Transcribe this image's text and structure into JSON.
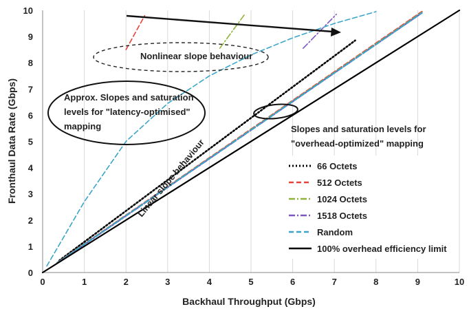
{
  "chart_data": {
    "type": "line",
    "xlabel": "Backhaul Throughput (Gbps)",
    "ylabel": "Fronthaul Data Rate (Gbps)",
    "xlim": [
      0,
      10
    ],
    "ylim": [
      0,
      10
    ],
    "x_ticks": [
      "0",
      "1",
      "2",
      "3",
      "4",
      "5",
      "6",
      "7",
      "8",
      "9",
      "10"
    ],
    "y_ticks": [
      "0",
      "1",
      "2",
      "3",
      "4",
      "5",
      "6",
      "7",
      "8",
      "9",
      "10"
    ],
    "grid": "vertical",
    "legend_position": "bottom-right",
    "series": [
      {
        "name": "66 Octets",
        "color": "#000000",
        "style": "dotted",
        "x": [
          0.4,
          7.5
        ],
        "y": [
          0.46,
          8.85
        ]
      },
      {
        "name": "512 Octets",
        "color": "#e8423a",
        "style": "dashed",
        "x": [
          0.35,
          9.1
        ],
        "y": [
          0.38,
          9.95
        ]
      },
      {
        "name": "1024 Octets",
        "color": "#8fb339",
        "style": "dashdot",
        "x": [
          0.35,
          9.1
        ],
        "y": [
          0.37,
          9.92
        ]
      },
      {
        "name": "1518 Octets",
        "color": "#7e57c2",
        "style": "dashdot",
        "x": [
          0.35,
          9.1
        ],
        "y": [
          0.36,
          9.9
        ]
      },
      {
        "name": "Random",
        "color": "#3aa5c9",
        "style": "dashed",
        "x": [
          0.35,
          9.1
        ],
        "y": [
          0.37,
          9.9
        ]
      },
      {
        "name": "100% overhead efficiency limit",
        "color": "#000000",
        "style": "solid",
        "x": [
          0,
          10
        ],
        "y": [
          0,
          10
        ]
      }
    ],
    "latency_segments": [
      {
        "color": "#e8423a",
        "style": "dashed",
        "x": [
          2.0,
          2.45
        ],
        "y": [
          8.5,
          9.8
        ]
      },
      {
        "color": "#8fb339",
        "style": "dashdot",
        "x": [
          4.25,
          4.85
        ],
        "y": [
          8.55,
          9.85
        ]
      },
      {
        "color": "#7e57c2",
        "style": "dashdot",
        "x": [
          6.25,
          7.05
        ],
        "y": [
          8.55,
          9.85
        ]
      },
      {
        "color": "#3aa5c9",
        "style": "dashed",
        "x": [
          0.1,
          1.0,
          2.0,
          3.0,
          4.0,
          5.0,
          6.0,
          7.0,
          8.0
        ],
        "y": [
          0.25,
          2.7,
          5.0,
          6.45,
          7.5,
          8.3,
          8.95,
          9.5,
          9.95
        ]
      }
    ],
    "annotations": {
      "nonlinear": "Nonlinear  slope behaviour",
      "latency_line1": "Approx. Slopes and saturation",
      "latency_line2": "levels for \"latency-optimised\"",
      "latency_line3": "mapping",
      "overhead_line1": "Slopes and saturation levels for",
      "overhead_line2": "\"overhead-optimized\" mapping",
      "linear": "Linear slope behaviour"
    }
  }
}
